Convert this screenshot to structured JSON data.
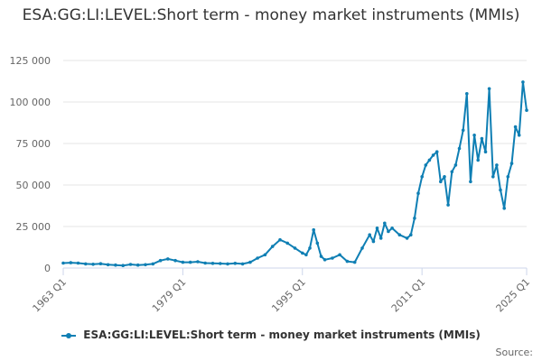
{
  "chart_data": {
    "type": "line",
    "title": "ESA:GG:LI:LEVEL:Short term - money market instruments (MMIs)",
    "xlabel": "",
    "ylabel": "",
    "ylim": [
      0,
      125000
    ],
    "y_ticks": [
      0,
      25000,
      50000,
      75000,
      100000,
      125000
    ],
    "y_tick_labels": [
      "0",
      "25 000",
      "50 000",
      "75 000",
      "100 000",
      "125 000"
    ],
    "x_range": [
      "1963-Q1",
      "2025-Q1"
    ],
    "x_ticks": [
      "1963 Q1",
      "1979 Q1",
      "1995 Q1",
      "2011 Q1",
      "2025 Q1"
    ],
    "grid": "horizontal",
    "legend_position": "bottom",
    "series": [
      {
        "name": "ESA:GG:LI:LEVEL:Short term - money market instruments (MMIs)",
        "color": "#0f7fb4",
        "points": [
          [
            "1963-Q1",
            3000
          ],
          [
            "1964-Q1",
            3200
          ],
          [
            "1965-Q1",
            3000
          ],
          [
            "1966-Q1",
            2500
          ],
          [
            "1967-Q1",
            2300
          ],
          [
            "1968-Q1",
            2600
          ],
          [
            "1969-Q1",
            2000
          ],
          [
            "1970-Q1",
            1800
          ],
          [
            "1971-Q1",
            1500
          ],
          [
            "1972-Q1",
            2200
          ],
          [
            "1973-Q1",
            1800
          ],
          [
            "1974-Q1",
            2000
          ],
          [
            "1975-Q1",
            2500
          ],
          [
            "1976-Q1",
            4500
          ],
          [
            "1977-Q1",
            5500
          ],
          [
            "1978-Q1",
            4500
          ],
          [
            "1979-Q1",
            3500
          ],
          [
            "1980-Q1",
            3500
          ],
          [
            "1981-Q1",
            3800
          ],
          [
            "1982-Q1",
            3000
          ],
          [
            "1983-Q1",
            2800
          ],
          [
            "1984-Q1",
            2700
          ],
          [
            "1985-Q1",
            2500
          ],
          [
            "1986-Q1",
            2800
          ],
          [
            "1987-Q1",
            2500
          ],
          [
            "1988-Q1",
            3500
          ],
          [
            "1989-Q1",
            6000
          ],
          [
            "1990-Q1",
            8000
          ],
          [
            "1991-Q1",
            13000
          ],
          [
            "1992-Q1",
            17000
          ],
          [
            "1993-Q1",
            15000
          ],
          [
            "1994-Q1",
            12000
          ],
          [
            "1995-Q1",
            9000
          ],
          [
            "1995-Q3",
            8000
          ],
          [
            "1996-Q1",
            12000
          ],
          [
            "1996-Q3",
            23000
          ],
          [
            "1997-Q1",
            15000
          ],
          [
            "1997-Q3",
            7000
          ],
          [
            "1998-Q1",
            5000
          ],
          [
            "1999-Q1",
            6000
          ],
          [
            "2000-Q1",
            8000
          ],
          [
            "2001-Q1",
            4000
          ],
          [
            "2002-Q1",
            3500
          ],
          [
            "2003-Q1",
            12000
          ],
          [
            "2004-Q1",
            20000
          ],
          [
            "2004-Q3",
            16000
          ],
          [
            "2005-Q1",
            24000
          ],
          [
            "2005-Q3",
            18000
          ],
          [
            "2006-Q1",
            27000
          ],
          [
            "2006-Q3",
            22000
          ],
          [
            "2007-Q1",
            24000
          ],
          [
            "2008-Q1",
            20000
          ],
          [
            "2009-Q1",
            18000
          ],
          [
            "2009-Q3",
            20000
          ],
          [
            "2010-Q1",
            30000
          ],
          [
            "2010-Q3",
            45000
          ],
          [
            "2011-Q1",
            55000
          ],
          [
            "2011-Q3",
            62000
          ],
          [
            "2012-Q1",
            65000
          ],
          [
            "2012-Q3",
            68000
          ],
          [
            "2013-Q1",
            70000
          ],
          [
            "2013-Q3",
            52000
          ],
          [
            "2014-Q1",
            55000
          ],
          [
            "2014-Q3",
            38000
          ],
          [
            "2015-Q1",
            58000
          ],
          [
            "2015-Q3",
            62000
          ],
          [
            "2016-Q1",
            72000
          ],
          [
            "2016-Q3",
            83000
          ],
          [
            "2017-Q1",
            105000
          ],
          [
            "2017-Q3",
            52000
          ],
          [
            "2018-Q1",
            80000
          ],
          [
            "2018-Q3",
            65000
          ],
          [
            "2019-Q1",
            78000
          ],
          [
            "2019-Q3",
            70000
          ],
          [
            "2020-Q1",
            108000
          ],
          [
            "2020-Q3",
            55000
          ],
          [
            "2021-Q1",
            62000
          ],
          [
            "2021-Q3",
            47000
          ],
          [
            "2022-Q1",
            36000
          ],
          [
            "2022-Q3",
            55000
          ],
          [
            "2023-Q1",
            63000
          ],
          [
            "2023-Q3",
            85000
          ],
          [
            "2024-Q1",
            80000
          ],
          [
            "2024-Q3",
            112000
          ],
          [
            "2025-Q1",
            95000
          ]
        ]
      }
    ]
  },
  "source_label": "Source:"
}
